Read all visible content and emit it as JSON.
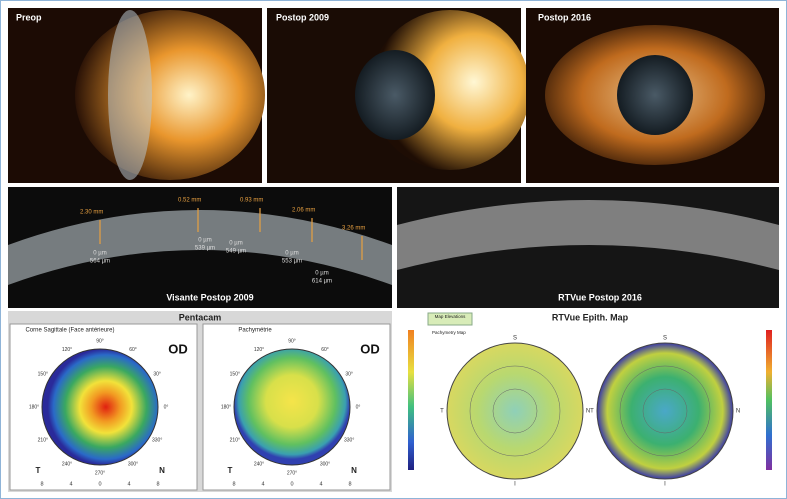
{
  "photos": [
    {
      "label": "Preop"
    },
    {
      "label": "Postop 2009"
    },
    {
      "label": "Postop 2016"
    }
  ],
  "visante": {
    "label": "Visante Postop 2009",
    "measurements": [
      {
        "distance": "2.30 mm",
        "depth": "0 µm",
        "thickness": "564 µm"
      },
      {
        "distance": "0.52 mm",
        "depth": "0 µm",
        "thickness": "539 µm"
      },
      {
        "distance": "0.93 mm",
        "depth": "0 µm",
        "thickness": "549 µm"
      },
      {
        "distance": "2.06 mm",
        "depth": "0 µm",
        "thickness": "553 µm"
      },
      {
        "distance": "3.26 mm",
        "depth": "0 µm",
        "thickness": "614 µm"
      }
    ]
  },
  "rtvue_oct": {
    "label": "RTVue Postop 2016"
  },
  "pentacam": {
    "title": "Pentacam",
    "panels": [
      {
        "title": "Corne Sagittale (Face antérieure)",
        "eye": "OD"
      },
      {
        "title": "Pachymétrie",
        "eye": "OD"
      }
    ],
    "angles": [
      "90°",
      "60°",
      "30°",
      "0°",
      "330°",
      "300°",
      "270°",
      "240°",
      "210°",
      "180°",
      "150°",
      "120°"
    ],
    "axis_ticks": [
      "8",
      "4",
      "0",
      "4",
      "8"
    ],
    "sides": [
      "T",
      "N"
    ]
  },
  "rtvue_map": {
    "title": "RTVue Epith. Map",
    "legend_title": "Map Elevations",
    "map_label": "Pachymetry Map",
    "compass": [
      "S",
      "N",
      "I",
      "T"
    ]
  }
}
